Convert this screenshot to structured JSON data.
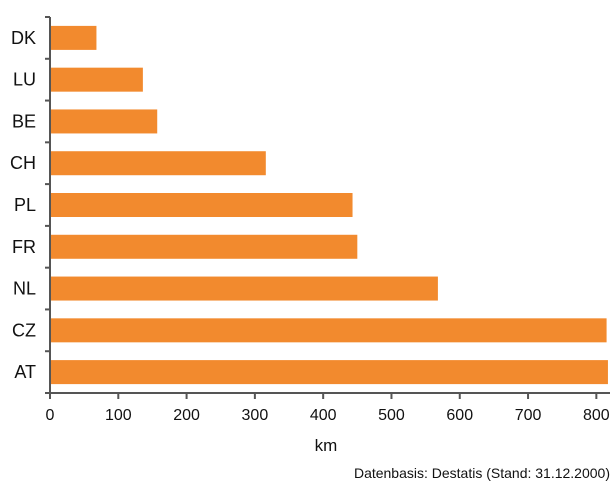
{
  "chart_data": {
    "type": "bar",
    "orientation": "horizontal",
    "categories": [
      "DK",
      "LU",
      "BE",
      "CH",
      "PL",
      "FR",
      "NL",
      "CZ",
      "AT"
    ],
    "values": [
      68,
      136,
      157,
      316,
      443,
      450,
      568,
      815,
      817
    ],
    "xlabel": "km",
    "ylabel": "",
    "xlim": [
      0,
      820
    ],
    "xticks": [
      0,
      100,
      200,
      300,
      400,
      500,
      600,
      700,
      800
    ],
    "grid": false,
    "legend": "none",
    "bar_color": "#f28a2e",
    "axis_color": "#555555"
  },
  "source_note": "Datenbasis: Destatis (Stand: 31.12.2000)"
}
